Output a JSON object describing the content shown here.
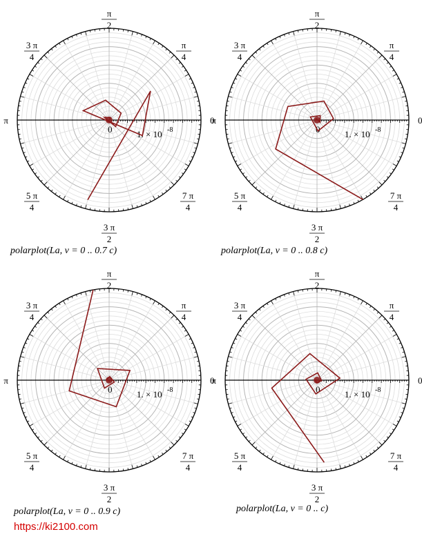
{
  "watermark": "https://ki2100.com",
  "radial_tick_label": "1. × 10",
  "radial_tick_exp": "-8",
  "origin_label": "0",
  "angle_labels": [
    {
      "key": "0",
      "num": "0",
      "den": ""
    },
    {
      "key": "45",
      "num": "π",
      "den": "4"
    },
    {
      "key": "90",
      "num": "π",
      "den": "2"
    },
    {
      "key": "135",
      "num": "3 π",
      "den": "4"
    },
    {
      "key": "180",
      "num": "π",
      "den": ""
    },
    {
      "key": "225",
      "num": "5 π",
      "den": "4"
    },
    {
      "key": "270",
      "num": "3 π",
      "den": "2"
    },
    {
      "key": "315",
      "num": "7 π",
      "den": "4"
    }
  ],
  "colors": {
    "curve": "#8b1a1a",
    "grid_major": "#b3b3b3",
    "grid_minor": "#dcdcdc",
    "frame": "#000000",
    "url": "#d40000"
  },
  "chart_data": [
    {
      "type": "polar-line",
      "caption": "polarplot(La, v = 0 .. 0.7 c)",
      "grid": true,
      "curve": [
        [
          0.9,
          -105
        ],
        [
          0.55,
          35
        ],
        [
          0.4,
          -25
        ],
        [
          0.3,
          160
        ],
        [
          0.22,
          100
        ],
        [
          0.15,
          30
        ],
        [
          0.1,
          -45
        ],
        [
          0.06,
          150
        ],
        [
          0.03,
          60
        ],
        [
          0.0,
          0
        ]
      ]
    },
    {
      "type": "polar-line",
      "caption": "polarplot(La, v = 0 .. 0.8 c)",
      "grid": true,
      "curve": [
        [
          1.0,
          -60
        ],
        [
          0.55,
          -145
        ],
        [
          0.35,
          155
        ],
        [
          0.22,
          70
        ],
        [
          0.18,
          5
        ],
        [
          0.12,
          -85
        ],
        [
          0.08,
          155
        ],
        [
          0.06,
          55
        ],
        [
          0.04,
          -35
        ],
        [
          0.02,
          120
        ],
        [
          0.0,
          0
        ]
      ]
    },
    {
      "type": "polar-line",
      "caption": "polarplot(La, v = 0 .. 0.9 c)",
      "grid": true,
      "curve": [
        [
          1.0,
          100
        ],
        [
          0.45,
          -165
        ],
        [
          0.3,
          -75
        ],
        [
          0.25,
          25
        ],
        [
          0.18,
          135
        ],
        [
          0.1,
          -120
        ],
        [
          0.06,
          -20
        ],
        [
          0.04,
          80
        ],
        [
          0.03,
          170
        ],
        [
          0.01,
          -80
        ],
        [
          0.0,
          0
        ]
      ]
    },
    {
      "type": "polar-line",
      "caption": "polarplot(La, v = 0 .. c)",
      "grid": true,
      "curve": [
        [
          0.9,
          -85
        ],
        [
          0.5,
          -170
        ],
        [
          0.3,
          105
        ],
        [
          0.25,
          5
        ],
        [
          0.15,
          -95
        ],
        [
          0.12,
          175
        ],
        [
          0.08,
          85
        ],
        [
          0.05,
          -5
        ],
        [
          0.03,
          -95
        ],
        [
          0.02,
          175
        ],
        [
          0.0,
          0
        ]
      ]
    }
  ]
}
